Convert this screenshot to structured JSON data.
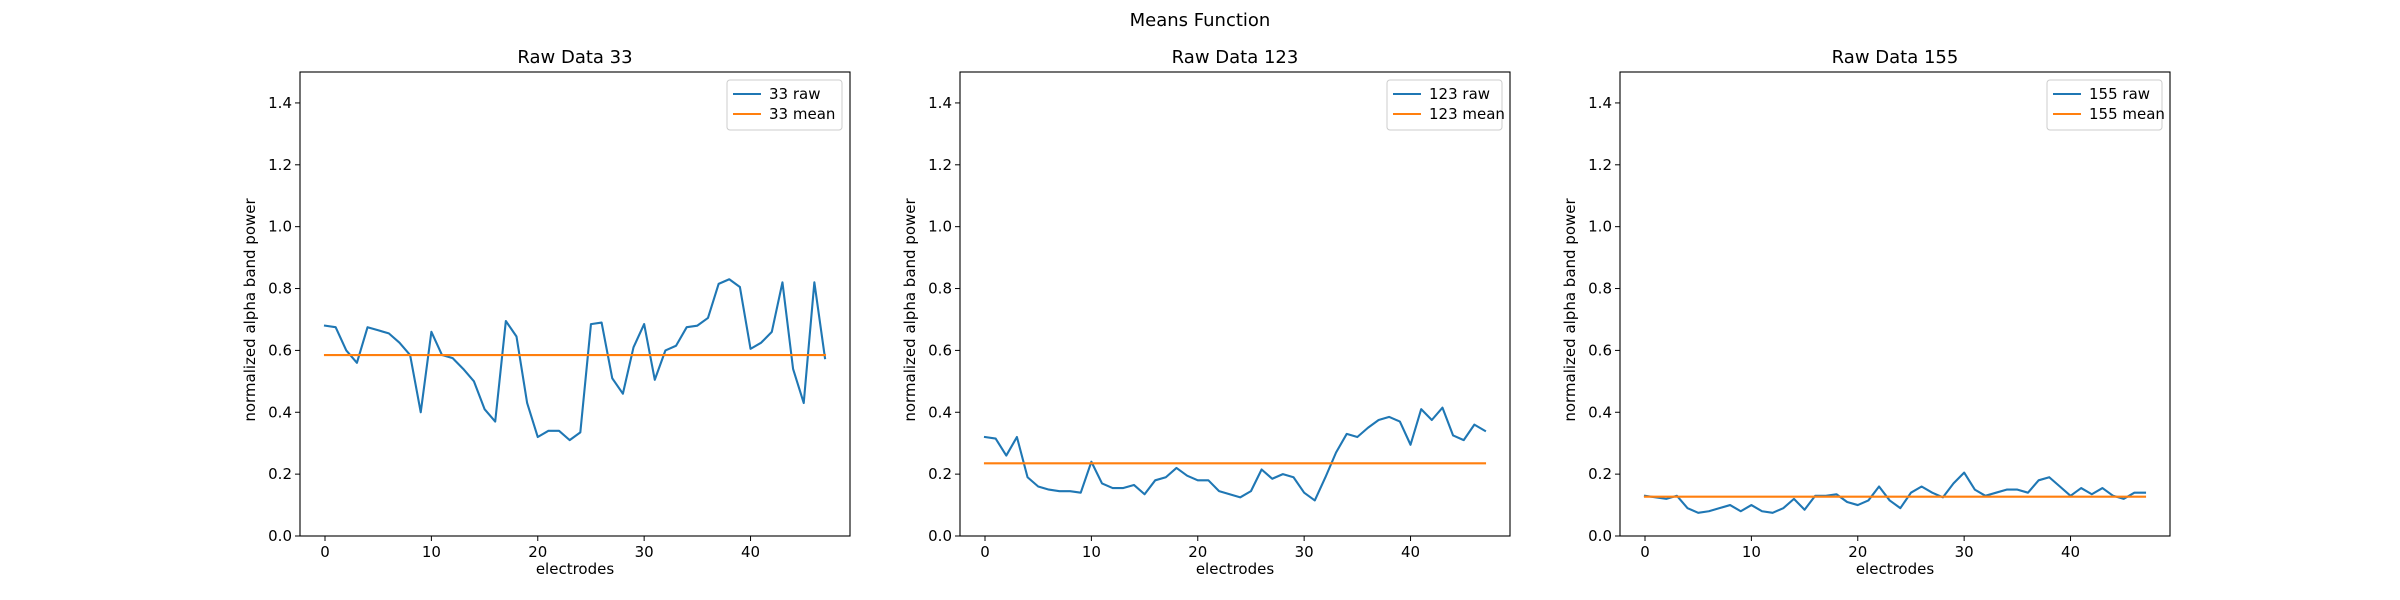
{
  "figure": {
    "suptitle": "Means Function"
  },
  "chart_data": [
    {
      "type": "line",
      "title": "Raw Data 33",
      "xlabel": "electrodes",
      "ylabel": "normalized alpha band power",
      "xlim": [
        -2.35,
        49.35
      ],
      "ylim": [
        0,
        1.5
      ],
      "xticks": [
        0,
        10,
        20,
        30,
        40
      ],
      "yticks": [
        0.0,
        0.2,
        0.4,
        0.6,
        0.8,
        1.0,
        1.2,
        1.4
      ],
      "ytick_labels": [
        "0.0",
        "0.2",
        "0.4",
        "0.6",
        "0.8",
        "1.0",
        "1.2",
        "1.4"
      ],
      "grid": false,
      "legend": "top-right",
      "series": [
        {
          "name": "33 raw",
          "color": "#1f77b4",
          "x": [
            0,
            1,
            2,
            3,
            4,
            5,
            6,
            7,
            8,
            9,
            10,
            11,
            12,
            13,
            14,
            15,
            16,
            17,
            18,
            19,
            20,
            21,
            22,
            23,
            24,
            25,
            26,
            27,
            28,
            29,
            30,
            31,
            32,
            33,
            34,
            35,
            36,
            37,
            38,
            39,
            40,
            41,
            42,
            43,
            44,
            45,
            46,
            47
          ],
          "values": [
            0.68,
            0.675,
            0.6,
            0.56,
            0.675,
            0.665,
            0.655,
            0.625,
            0.585,
            0.4,
            0.66,
            0.585,
            0.575,
            0.54,
            0.5,
            0.41,
            0.37,
            0.695,
            0.645,
            0.43,
            0.32,
            0.34,
            0.34,
            0.31,
            0.335,
            0.685,
            0.69,
            0.51,
            0.46,
            0.61,
            0.685,
            0.505,
            0.6,
            0.615,
            0.675,
            0.68,
            0.705,
            0.815,
            0.83,
            0.805,
            0.605,
            0.625,
            0.66,
            0.82,
            0.54,
            0.43,
            0.82,
            0.575
          ]
        },
        {
          "name": "33 mean",
          "color": "#ff7f0e",
          "x": [
            0,
            47
          ],
          "values": [
            0.585,
            0.585
          ]
        }
      ]
    },
    {
      "type": "line",
      "title": "Raw Data 123",
      "xlabel": "electrodes",
      "ylabel": "normalized alpha band power",
      "xlim": [
        -2.35,
        49.35
      ],
      "ylim": [
        0,
        1.5
      ],
      "xticks": [
        0,
        10,
        20,
        30,
        40
      ],
      "yticks": [
        0.0,
        0.2,
        0.4,
        0.6,
        0.8,
        1.0,
        1.2,
        1.4
      ],
      "ytick_labels": [
        "0.0",
        "0.2",
        "0.4",
        "0.6",
        "0.8",
        "1.0",
        "1.2",
        "1.4"
      ],
      "grid": false,
      "legend": "top-right",
      "series": [
        {
          "name": "123 raw",
          "color": "#1f77b4",
          "x": [
            0,
            1,
            2,
            3,
            4,
            5,
            6,
            7,
            8,
            9,
            10,
            11,
            12,
            13,
            14,
            15,
            16,
            17,
            18,
            19,
            20,
            21,
            22,
            23,
            24,
            25,
            26,
            27,
            28,
            29,
            30,
            31,
            32,
            33,
            34,
            35,
            36,
            37,
            38,
            39,
            40,
            41,
            42,
            43,
            44,
            45,
            46,
            47
          ],
          "values": [
            0.32,
            0.315,
            0.26,
            0.32,
            0.19,
            0.16,
            0.15,
            0.145,
            0.145,
            0.14,
            0.24,
            0.17,
            0.155,
            0.155,
            0.165,
            0.135,
            0.18,
            0.19,
            0.22,
            0.195,
            0.18,
            0.18,
            0.145,
            0.135,
            0.125,
            0.145,
            0.215,
            0.185,
            0.2,
            0.19,
            0.14,
            0.115,
            0.19,
            0.27,
            0.33,
            0.32,
            0.35,
            0.375,
            0.385,
            0.37,
            0.295,
            0.41,
            0.375,
            0.415,
            0.325,
            0.31,
            0.36,
            0.34
          ]
        },
        {
          "name": "123 mean",
          "color": "#ff7f0e",
          "x": [
            0,
            47
          ],
          "values": [
            0.235,
            0.235
          ]
        }
      ]
    },
    {
      "type": "line",
      "title": "Raw Data 155",
      "xlabel": "electrodes",
      "ylabel": "normalized alpha band power",
      "xlim": [
        -2.35,
        49.35
      ],
      "ylim": [
        0,
        1.5
      ],
      "xticks": [
        0,
        10,
        20,
        30,
        40
      ],
      "yticks": [
        0.0,
        0.2,
        0.4,
        0.6,
        0.8,
        1.0,
        1.2,
        1.4
      ],
      "ytick_labels": [
        "0.0",
        "0.2",
        "0.4",
        "0.6",
        "0.8",
        "1.0",
        "1.2",
        "1.4"
      ],
      "grid": false,
      "legend": "top-right",
      "series": [
        {
          "name": "155 raw",
          "color": "#1f77b4",
          "x": [
            0,
            1,
            2,
            3,
            4,
            5,
            6,
            7,
            8,
            9,
            10,
            11,
            12,
            13,
            14,
            15,
            16,
            17,
            18,
            19,
            20,
            21,
            22,
            23,
            24,
            25,
            26,
            27,
            28,
            29,
            30,
            31,
            32,
            33,
            34,
            35,
            36,
            37,
            38,
            39,
            40,
            41,
            42,
            43,
            44,
            45,
            46,
            47
          ],
          "values": [
            0.13,
            0.125,
            0.12,
            0.13,
            0.09,
            0.075,
            0.08,
            0.09,
            0.1,
            0.08,
            0.1,
            0.08,
            0.075,
            0.09,
            0.12,
            0.085,
            0.13,
            0.13,
            0.135,
            0.11,
            0.1,
            0.115,
            0.16,
            0.115,
            0.09,
            0.14,
            0.16,
            0.14,
            0.125,
            0.17,
            0.205,
            0.15,
            0.13,
            0.14,
            0.15,
            0.15,
            0.14,
            0.18,
            0.19,
            0.16,
            0.13,
            0.155,
            0.135,
            0.155,
            0.13,
            0.12,
            0.14,
            0.14
          ]
        },
        {
          "name": "155 mean",
          "color": "#ff7f0e",
          "x": [
            0,
            47
          ],
          "values": [
            0.127,
            0.127
          ]
        }
      ]
    }
  ]
}
